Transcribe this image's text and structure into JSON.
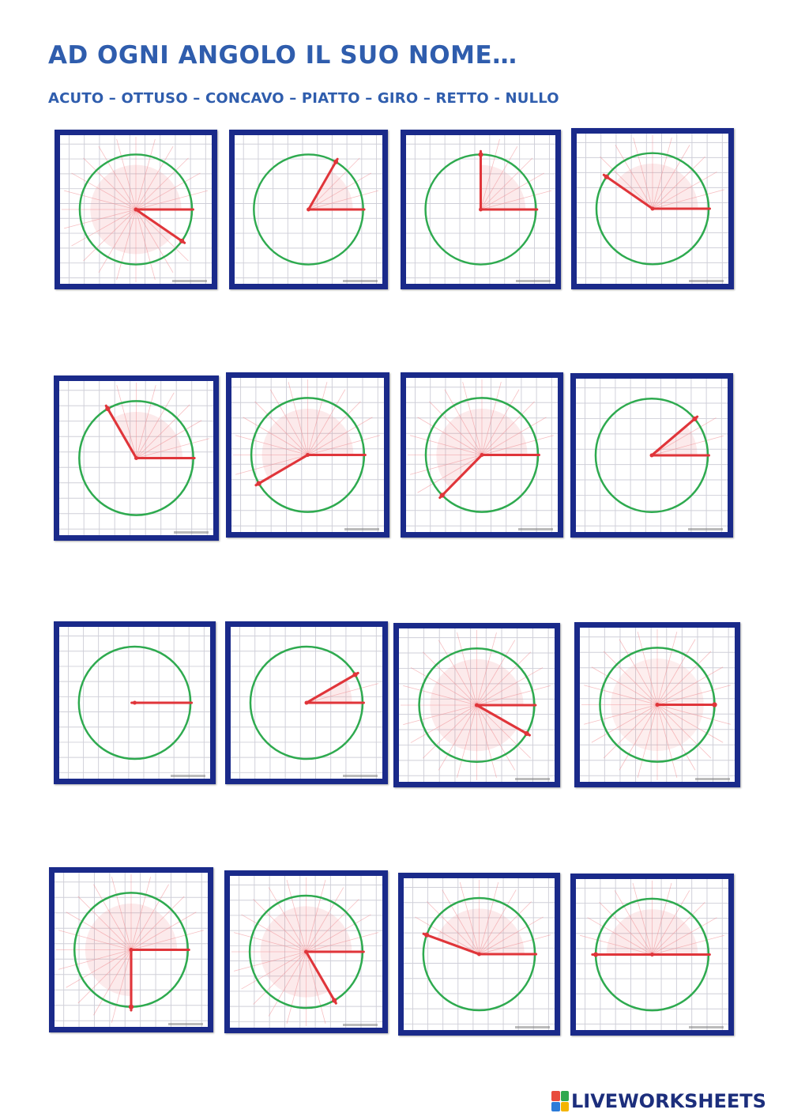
{
  "title": "AD OGNI ANGOLO IL SUO NOME…",
  "word_bank": "ACUTO – OTTUSO – CONCAVO – PIATTO – GIRO – RETTO - NULLO",
  "footer": {
    "brand": "LIVEWORKSHEETS"
  },
  "colors": {
    "title": "#2f5dad",
    "frame": "#1a2a8a",
    "circle": "#2eaa4f",
    "ray": "#e0353a",
    "fan": "#f08a8f",
    "grid": "#cfcfd8",
    "brand": "#1c2e7c"
  },
  "cards": [
    {
      "angle": 325
    },
    {
      "angle": 60
    },
    {
      "angle": 90
    },
    {
      "angle": 145
    },
    {
      "angle": 120
    },
    {
      "angle": 210
    },
    {
      "angle": 225
    },
    {
      "angle": 40
    },
    {
      "angle": 0
    },
    {
      "angle": 30
    },
    {
      "angle": 330
    },
    {
      "angle": 360
    },
    {
      "angle": 270
    },
    {
      "angle": 300
    },
    {
      "angle": 160
    },
    {
      "angle": 180
    }
  ]
}
